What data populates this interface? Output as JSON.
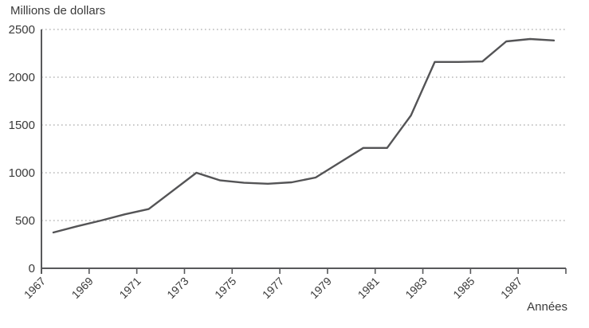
{
  "chart_data": {
    "type": "line",
    "title": "",
    "y_axis_title": "Millions de dollars",
    "x_axis_title": "Années",
    "series": [
      {
        "name": "Millions de dollars",
        "x": [
          1967,
          1968,
          1969,
          1970,
          1971,
          1972,
          1973,
          1974,
          1975,
          1976,
          1977,
          1978,
          1979,
          1980,
          1981,
          1982,
          1983,
          1984,
          1985,
          1986,
          1987,
          1988
        ],
        "values": [
          375,
          440,
          500,
          565,
          620,
          810,
          1000,
          920,
          895,
          885,
          900,
          950,
          1105,
          1260,
          1260,
          1600,
          2160,
          2160,
          2165,
          2375,
          2400,
          2385
        ]
      }
    ],
    "x_tick_labels": [
      "1967",
      "1969",
      "1971",
      "1973",
      "1975",
      "1977",
      "1979",
      "1981",
      "1983",
      "1985",
      "1987"
    ],
    "x_tick_step_years": 2,
    "x_axis_range": [
      1967,
      1989
    ],
    "y_ticks": [
      0,
      500,
      1000,
      1500,
      2000,
      2500
    ],
    "ylim": [
      0,
      2500
    ],
    "grid": "horizontal-dotted",
    "legend": "none",
    "colors": {
      "line": "#545456",
      "axis": "#58595b",
      "grid": "#b7b7b7",
      "text": "#3a3a3a",
      "background": "#ffffff"
    }
  }
}
